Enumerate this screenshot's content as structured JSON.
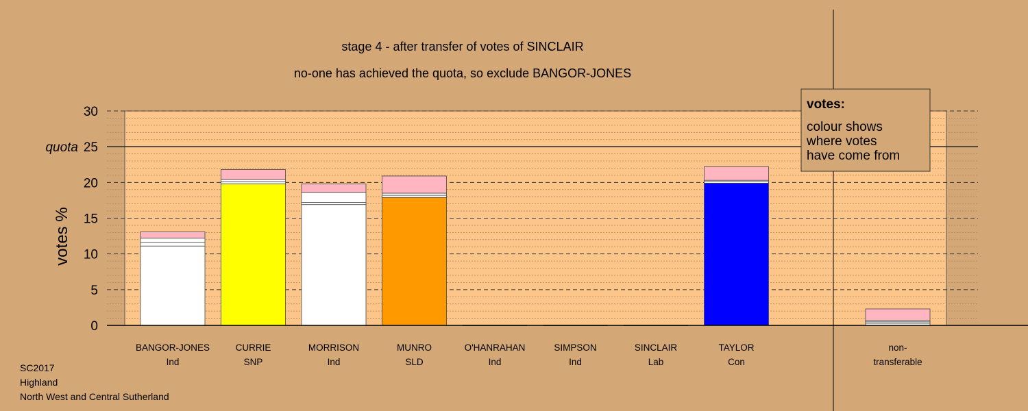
{
  "titles": {
    "line1": "stage 4 - after transfer of votes of SINCLAIR",
    "line2": "no-one has achieved the quota, so exclude BANGOR-JONES"
  },
  "legend": {
    "heading": "votes:",
    "lines": [
      "colour shows",
      "where votes",
      "have come from"
    ]
  },
  "footer": [
    "SC2017",
    "Highland",
    "North West and Central Sutherland"
  ],
  "colors": {
    "background": "#d4a876",
    "plot_area": "#fcc58a",
    "Ind": "#ffffff",
    "SNP": "#ffff00",
    "SLD": "#ff9900",
    "Con": "#0000ff",
    "Lab_transfer": "#ffb6c1"
  },
  "chart_data": {
    "type": "bar",
    "stacked": true,
    "ylabel": "votes %",
    "ylim": [
      0,
      30
    ],
    "yticks": [
      0,
      5,
      10,
      15,
      20,
      25,
      30
    ],
    "quota": {
      "value": 25,
      "label": "quota"
    },
    "grid": true,
    "legend_position": "top-right",
    "candidates": [
      {
        "name": "BANGOR-JONES",
        "party": "Ind",
        "segments": [
          {
            "value": 11.1,
            "color": "#ffffff"
          },
          {
            "value": 0.5,
            "color": "#ffffff"
          },
          {
            "value": 0.6,
            "color": "#ffffff"
          },
          {
            "value": 0.9,
            "color": "#ffb6c1"
          }
        ]
      },
      {
        "name": "CURRIE",
        "party": "SNP",
        "segments": [
          {
            "value": 19.8,
            "color": "#ffff00"
          },
          {
            "value": 0.3,
            "color": "#ffffff"
          },
          {
            "value": 0.3,
            "color": "#ffffff"
          },
          {
            "value": 1.4,
            "color": "#ffb6c1"
          }
        ]
      },
      {
        "name": "MORRISON",
        "party": "Ind",
        "segments": [
          {
            "value": 16.9,
            "color": "#ffffff"
          },
          {
            "value": 0.3,
            "color": "#ffffff"
          },
          {
            "value": 1.4,
            "color": "#ffffff"
          },
          {
            "value": 1.2,
            "color": "#ffb6c1"
          }
        ]
      },
      {
        "name": "MUNRO",
        "party": "SLD",
        "segments": [
          {
            "value": 17.9,
            "color": "#ff9900"
          },
          {
            "value": 0.3,
            "color": "#ffffff"
          },
          {
            "value": 0.3,
            "color": "#ffffff"
          },
          {
            "value": 2.4,
            "color": "#ffb6c1"
          }
        ]
      },
      {
        "name": "O'HANRAHAN",
        "party": "Ind",
        "segments": []
      },
      {
        "name": "SIMPSON",
        "party": "Ind",
        "segments": []
      },
      {
        "name": "SINCLAIR",
        "party": "Lab",
        "segments": []
      },
      {
        "name": "TAYLOR",
        "party": "Con",
        "segments": [
          {
            "value": 19.9,
            "color": "#0000ff"
          },
          {
            "value": 0.2,
            "color": "#ffffff"
          },
          {
            "value": 0.2,
            "color": "#ffffff"
          },
          {
            "value": 1.9,
            "color": "#ffb6c1"
          }
        ]
      }
    ],
    "non_transferable": {
      "label": [
        "non-",
        "transferable"
      ],
      "segments": [
        {
          "value": 0.3,
          "color": "#ffffff"
        },
        {
          "value": 0.2,
          "color": "#ffffff"
        },
        {
          "value": 0.2,
          "color": "#ffffff"
        },
        {
          "value": 1.6,
          "color": "#ffb6c1"
        }
      ]
    }
  }
}
